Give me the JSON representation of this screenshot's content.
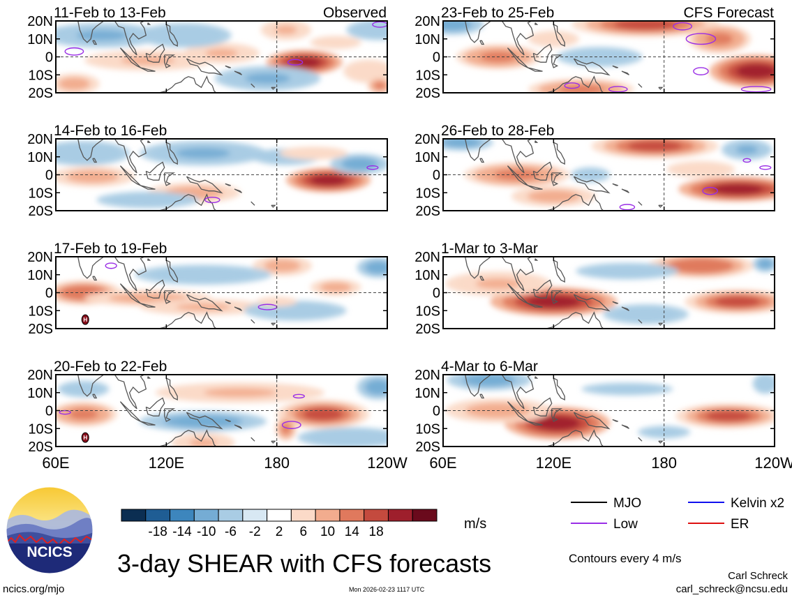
{
  "chart_data": {
    "type": "heatmap",
    "title": "3-day SHEAR with CFS forecasts",
    "units": "m/s",
    "x_ticks": [
      "60E",
      "120E",
      "180",
      "120W"
    ],
    "y_ticks": [
      "20N",
      "10N",
      "0",
      "10S",
      "20S"
    ],
    "x_range_deg_east": [
      60,
      240
    ],
    "y_range_deg": [
      -20,
      20
    ],
    "colorbar": {
      "levels": [
        -18,
        -14,
        -10,
        -6,
        -2,
        2,
        6,
        10,
        14,
        18
      ],
      "labels": [
        "-18",
        "-14",
        "-10",
        "-6",
        "-2",
        "2",
        "6",
        "10",
        "14",
        "18"
      ],
      "colors": [
        "#0b2e52",
        "#1f5d94",
        "#3d86bd",
        "#75acd4",
        "#a9cce4",
        "#d8e8f3",
        "#ffffff",
        "#fbdac8",
        "#f2ac8e",
        "#e0795d",
        "#c44a3e",
        "#9e1f2c",
        "#6a0a1c"
      ]
    },
    "panels": [
      {
        "label": "11-Feb to 13-Feb",
        "tag": "Observed",
        "blobs": [
          [
            195,
            -3,
            18,
            6,
            18
          ],
          [
            110,
            -2,
            30,
            5,
            7
          ],
          [
            150,
            2,
            18,
            5,
            6
          ],
          [
            185,
            15,
            12,
            5,
            7
          ],
          [
            85,
            12,
            28,
            6,
            -7
          ],
          [
            130,
            12,
            22,
            6,
            -6
          ],
          [
            175,
            -12,
            25,
            6,
            -7
          ],
          [
            230,
            -8,
            15,
            7,
            5
          ],
          [
            235,
            15,
            15,
            5,
            -6
          ],
          [
            212,
            8,
            15,
            4,
            5
          ],
          [
            70,
            -15,
            12,
            5,
            8
          ],
          [
            236,
            -16,
            6,
            4,
            12
          ]
        ],
        "low_contours": [
          [
            70,
            3,
            5,
            2
          ],
          [
            236,
            18,
            4,
            1.5
          ],
          [
            190,
            -3,
            4,
            1.5
          ]
        ]
      },
      {
        "label": "14-Feb to 16-Feb",
        "tag": "",
        "blobs": [
          [
            208,
            -3,
            20,
            6,
            19
          ],
          [
            80,
            -1,
            20,
            5,
            8
          ],
          [
            135,
            -10,
            22,
            5,
            8
          ],
          [
            140,
            12,
            30,
            6,
            -7
          ],
          [
            225,
            6,
            14,
            5,
            -9
          ],
          [
            75,
            12,
            22,
            6,
            -6
          ],
          [
            185,
            10,
            20,
            5,
            -4
          ],
          [
            200,
            12,
            20,
            4,
            4
          ],
          [
            110,
            -14,
            30,
            5,
            -4
          ]
        ],
        "low_contours": [
          [
            145,
            -14,
            4,
            1.5
          ],
          [
            232,
            4,
            3,
            1
          ]
        ]
      },
      {
        "label": "17-Feb to 19-Feb",
        "tag": "",
        "blobs": [
          [
            75,
            0,
            18,
            6,
            13
          ],
          [
            110,
            -3,
            30,
            4,
            8
          ],
          [
            140,
            -8,
            30,
            4,
            7
          ],
          [
            183,
            15,
            14,
            5,
            9
          ],
          [
            212,
            3,
            12,
            4,
            8
          ],
          [
            235,
            14,
            10,
            5,
            -9
          ],
          [
            140,
            10,
            40,
            6,
            -5
          ],
          [
            190,
            -10,
            30,
            6,
            -5
          ],
          [
            180,
            -5,
            12,
            3,
            5
          ]
        ],
        "low_contours": [
          [
            90,
            15,
            3,
            1.5
          ],
          [
            175,
            -8,
            5,
            1.5
          ]
        ],
        "h_markers": [
          [
            76,
            -15
          ]
        ]
      },
      {
        "label": "20-Feb to 22-Feb",
        "tag": "",
        "blobs": [
          [
            205,
            -2,
            22,
            7,
            14
          ],
          [
            185,
            -10,
            5,
            6,
            10
          ],
          [
            75,
            -2,
            16,
            6,
            10
          ],
          [
            160,
            10,
            40,
            5,
            6
          ],
          [
            140,
            -6,
            30,
            5,
            -8
          ],
          [
            235,
            13,
            10,
            6,
            -9
          ],
          [
            75,
            12,
            15,
            5,
            -5
          ],
          [
            140,
            -18,
            15,
            5,
            6
          ],
          [
            220,
            -15,
            25,
            5,
            -6
          ]
        ],
        "low_contours": [
          [
            188,
            -8,
            5,
            2
          ],
          [
            65,
            -1,
            3,
            1
          ],
          [
            192,
            8,
            3,
            1
          ]
        ],
        "h_markers": [
          [
            76,
            -15
          ]
        ]
      },
      {
        "label": "23-Feb to 25-Feb",
        "tag": "CFS Forecast",
        "blobs": [
          [
            170,
            18,
            35,
            6,
            14
          ],
          [
            230,
            -8,
            22,
            8,
            18
          ],
          [
            210,
            10,
            15,
            7,
            12
          ],
          [
            90,
            0,
            20,
            6,
            10
          ],
          [
            135,
            -18,
            25,
            5,
            10
          ],
          [
            65,
            18,
            15,
            5,
            -9
          ],
          [
            145,
            0,
            25,
            6,
            -5
          ],
          [
            120,
            10,
            15,
            5,
            5
          ]
        ],
        "low_contours": [
          [
            200,
            10,
            8,
            3
          ],
          [
            200,
            -8,
            4,
            2
          ],
          [
            230,
            -18,
            8,
            1.5
          ],
          [
            155,
            -18,
            5,
            1.5
          ],
          [
            130,
            -16,
            4,
            1.5
          ],
          [
            190,
            17,
            5,
            2
          ]
        ]
      },
      {
        "label": "26-Feb to 28-Feb",
        "tag": "",
        "blobs": [
          [
            220,
            -8,
            28,
            6,
            18
          ],
          [
            175,
            16,
            30,
            6,
            14
          ],
          [
            100,
            0,
            25,
            6,
            12
          ],
          [
            120,
            -12,
            20,
            5,
            9
          ],
          [
            225,
            14,
            12,
            5,
            -7
          ],
          [
            70,
            18,
            15,
            4,
            -8
          ],
          [
            140,
            0,
            15,
            6,
            -3
          ],
          [
            200,
            3,
            20,
            5,
            4
          ]
        ],
        "low_contours": [
          [
            205,
            -9,
            4,
            2
          ],
          [
            160,
            -18,
            4,
            1.5
          ],
          [
            235,
            4,
            3,
            1
          ],
          [
            225,
            8,
            2,
            1
          ]
        ]
      },
      {
        "label": "1-Mar to 3-Mar",
        "tag": "",
        "blobs": [
          [
            120,
            -5,
            30,
            7,
            18
          ],
          [
            220,
            -5,
            25,
            6,
            14
          ],
          [
            200,
            15,
            25,
            6,
            13
          ],
          [
            90,
            5,
            25,
            6,
            6
          ],
          [
            160,
            12,
            30,
            5,
            -5
          ],
          [
            235,
            16,
            6,
            4,
            -8
          ],
          [
            170,
            -12,
            25,
            6,
            -4
          ]
        ],
        "low_contours": []
      },
      {
        "label": "4-Mar to 6-Mar",
        "tag": "",
        "blobs": [
          [
            122,
            -7,
            25,
            8,
            18
          ],
          [
            215,
            -3,
            25,
            6,
            14
          ],
          [
            90,
            0,
            25,
            6,
            8
          ],
          [
            85,
            17,
            20,
            5,
            -10
          ],
          [
            160,
            12,
            35,
            5,
            -3
          ],
          [
            235,
            15,
            6,
            5,
            -6
          ],
          [
            180,
            -12,
            20,
            5,
            -3
          ]
        ],
        "low_contours": []
      }
    ]
  },
  "legend": {
    "items": [
      {
        "label": "MJO",
        "color": "#000000"
      },
      {
        "label": "Kelvin x2",
        "color": "#1010ee"
      },
      {
        "label": "Low",
        "color": "#9a2ee6"
      },
      {
        "label": "ER",
        "color": "#dd1010"
      }
    ],
    "contours_note": "Contours every 4 m/s"
  },
  "footer": {
    "website": "ncics.org/mjo",
    "timestamp": "Mon 2026-02-23 1117 UTC",
    "author": "Carl Schreck",
    "email": "carl_schreck@ncsu.edu"
  },
  "logo": {
    "text": "NCICS"
  },
  "colors": {
    "frame": "#000000",
    "land": "#555555",
    "low": "#9a2ee6"
  }
}
